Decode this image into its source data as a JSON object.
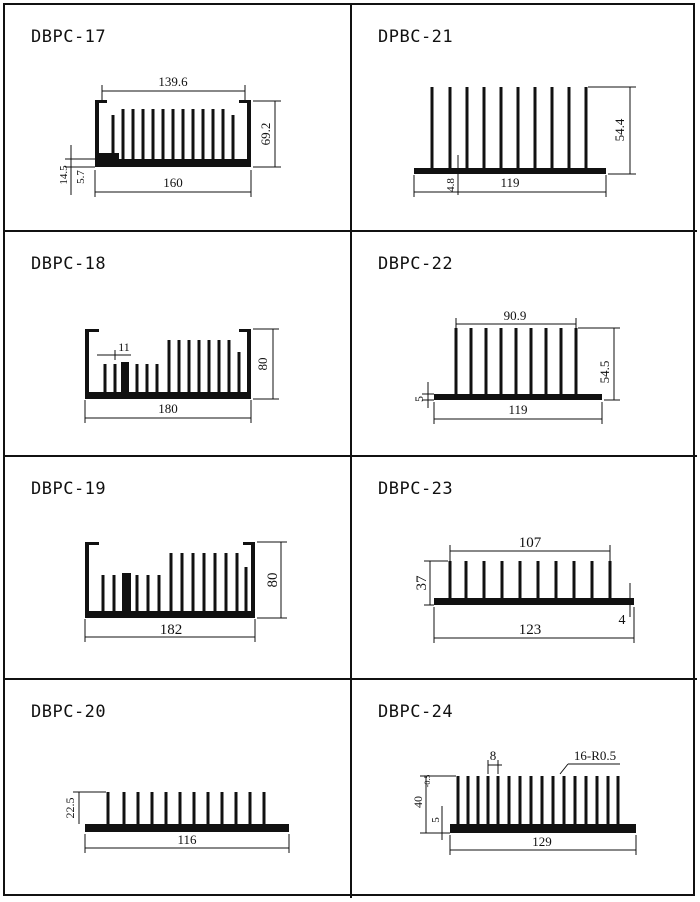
{
  "profiles": [
    {
      "code": "DBPC-17",
      "dims": {
        "inner_width": "139.6",
        "width": "160",
        "height": "69.2",
        "dim_a": "14.5",
        "dim_b": "5.7"
      }
    },
    {
      "code": "DPBC-21",
      "dims": {
        "width": "119",
        "height": "54.4",
        "base": "4.8"
      }
    },
    {
      "code": "DBPC-18",
      "dims": {
        "width": "180",
        "height": "80",
        "gap": "11"
      }
    },
    {
      "code": "DBPC-22",
      "dims": {
        "inner_width": "90.9",
        "width": "119",
        "height": "54.5",
        "base": "5"
      }
    },
    {
      "code": "DBPC-19",
      "dims": {
        "width": "182",
        "height": "80"
      }
    },
    {
      "code": "DBPC-23",
      "dims": {
        "inner_width": "107",
        "width": "123",
        "height": "37",
        "base": "4"
      }
    },
    {
      "code": "DBPC-20",
      "dims": {
        "width": "116",
        "height": "22.5"
      }
    },
    {
      "code": "DBPC-24",
      "dims": {
        "width": "129",
        "height": "40",
        "tolerance": "-0.5",
        "base": "5",
        "pitch": "8",
        "fin_spec": "16-R0.5"
      }
    }
  ]
}
